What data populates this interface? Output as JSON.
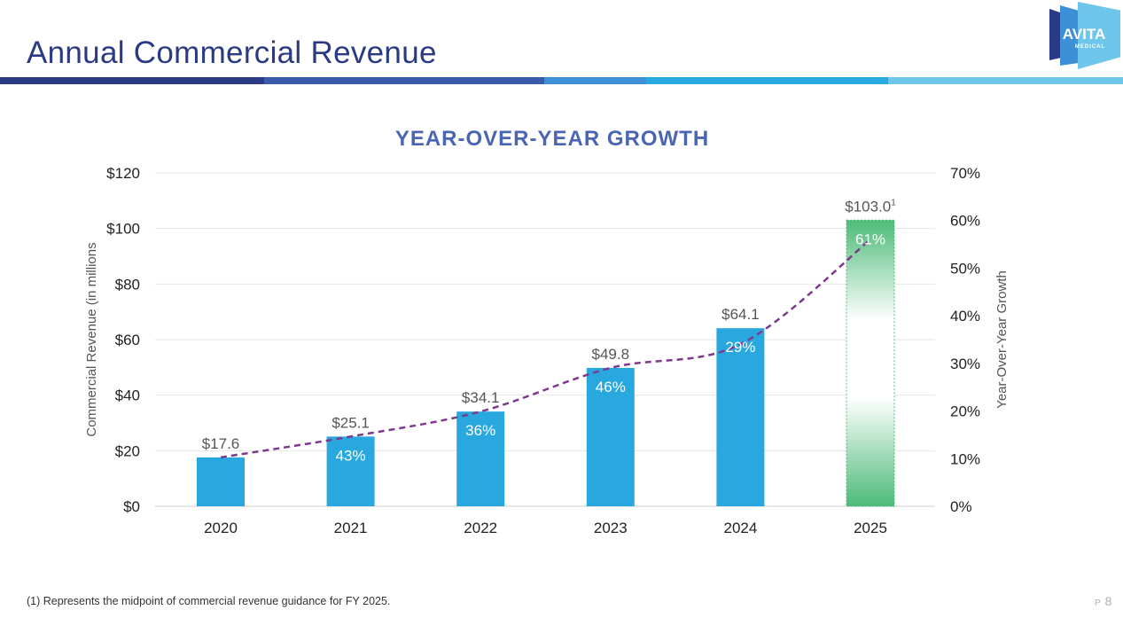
{
  "header": {
    "title": "Annual Commercial Revenue",
    "stripe_colors": [
      "#2b3a84",
      "#3a5bab",
      "#3d8fd6",
      "#2aa9e0",
      "#6ec6ea"
    ],
    "logo": {
      "line1": "AVITA",
      "line2": "MEDICAL"
    }
  },
  "chart_data": {
    "type": "bar",
    "title": "YEAR-OVER-YEAR GROWTH",
    "ylabel": "Commercial Revenue (in millions",
    "y2label": "Year-Over-Year Growth",
    "ylim": [
      0,
      120
    ],
    "y2lim": [
      0,
      70
    ],
    "yticks": [
      "$0",
      "$20",
      "$40",
      "$60",
      "$80",
      "$100",
      "$120"
    ],
    "y2ticks": [
      "0%",
      "10%",
      "20%",
      "30%",
      "40%",
      "50%",
      "60%",
      "70%"
    ],
    "categories": [
      "2020",
      "2021",
      "2022",
      "2023",
      "2024",
      "2025"
    ],
    "values": [
      17.6,
      25.1,
      34.1,
      49.8,
      64.1,
      103.0
    ],
    "value_labels": [
      "$17.6",
      "$25.1",
      "$34.1",
      "$49.8",
      "$64.1",
      "$103.0"
    ],
    "value_label_suffix": [
      "",
      "",
      "",
      "",
      "",
      "1"
    ],
    "growth_labels": [
      "",
      "43%",
      "36%",
      "46%",
      "29%",
      "61%"
    ],
    "trend_line": "dashed curve through bar tops (2020–2025)",
    "grid": true,
    "colors": {
      "bar": "#29a8e0",
      "forecast_bar": "#4dbb78",
      "trend": "#7d3a8c",
      "title": "#4a66b3",
      "axis_text": "#333333"
    }
  },
  "footer": {
    "footnote": "(1) Represents the midpoint of commercial revenue guidance for FY 2025.",
    "page_prefix": "P",
    "page_number": "8"
  }
}
